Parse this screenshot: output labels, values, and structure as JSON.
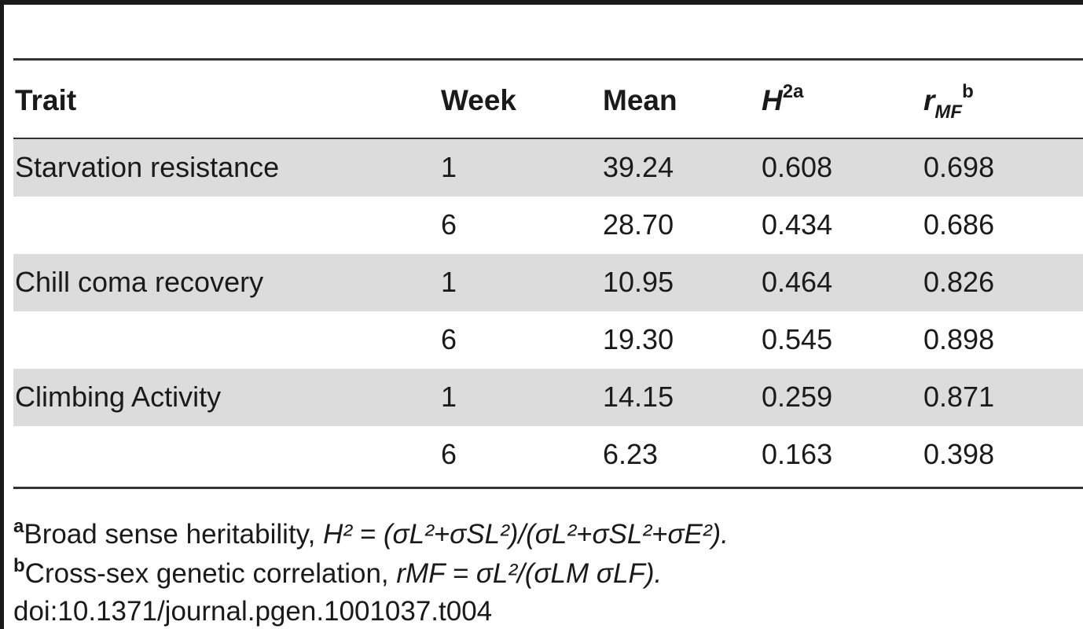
{
  "table": {
    "headers": {
      "trait": "Trait",
      "week": "Week",
      "mean": "Mean",
      "h2_base": "H",
      "h2_sup": "2a",
      "rmf_base": "r",
      "rmf_sub": "MF",
      "rmf_sup": "b"
    },
    "rows": [
      {
        "trait": "Starvation resistance",
        "week": "1",
        "mean": "39.24",
        "h2": "0.608",
        "rmf": "0.698",
        "shaded": true
      },
      {
        "trait": "",
        "week": "6",
        "mean": "28.70",
        "h2": "0.434",
        "rmf": "0.686",
        "shaded": false
      },
      {
        "trait": "Chill coma recovery",
        "week": "1",
        "mean": "10.95",
        "h2": "0.464",
        "rmf": "0.826",
        "shaded": true
      },
      {
        "trait": "",
        "week": "6",
        "mean": "19.30",
        "h2": "0.545",
        "rmf": "0.898",
        "shaded": false
      },
      {
        "trait": "Climbing Activity",
        "week": "1",
        "mean": "14.15",
        "h2": "0.259",
        "rmf": "0.871",
        "shaded": true
      },
      {
        "trait": "",
        "week": "6",
        "mean": "6.23",
        "h2": "0.163",
        "rmf": "0.398",
        "shaded": false
      }
    ]
  },
  "footnotes": {
    "a_marker": "a",
    "a_text": "Broad sense heritability, ",
    "a_formula": "H² = (σL²+σSL²)/(σL²+σSL²+σE²).",
    "b_marker": "b",
    "b_text": "Cross-sex genetic correlation, ",
    "b_formula": "rMF = σL²/(σLM σLF).",
    "doi": "doi:10.1371/journal.pgen.1001037.t004"
  }
}
